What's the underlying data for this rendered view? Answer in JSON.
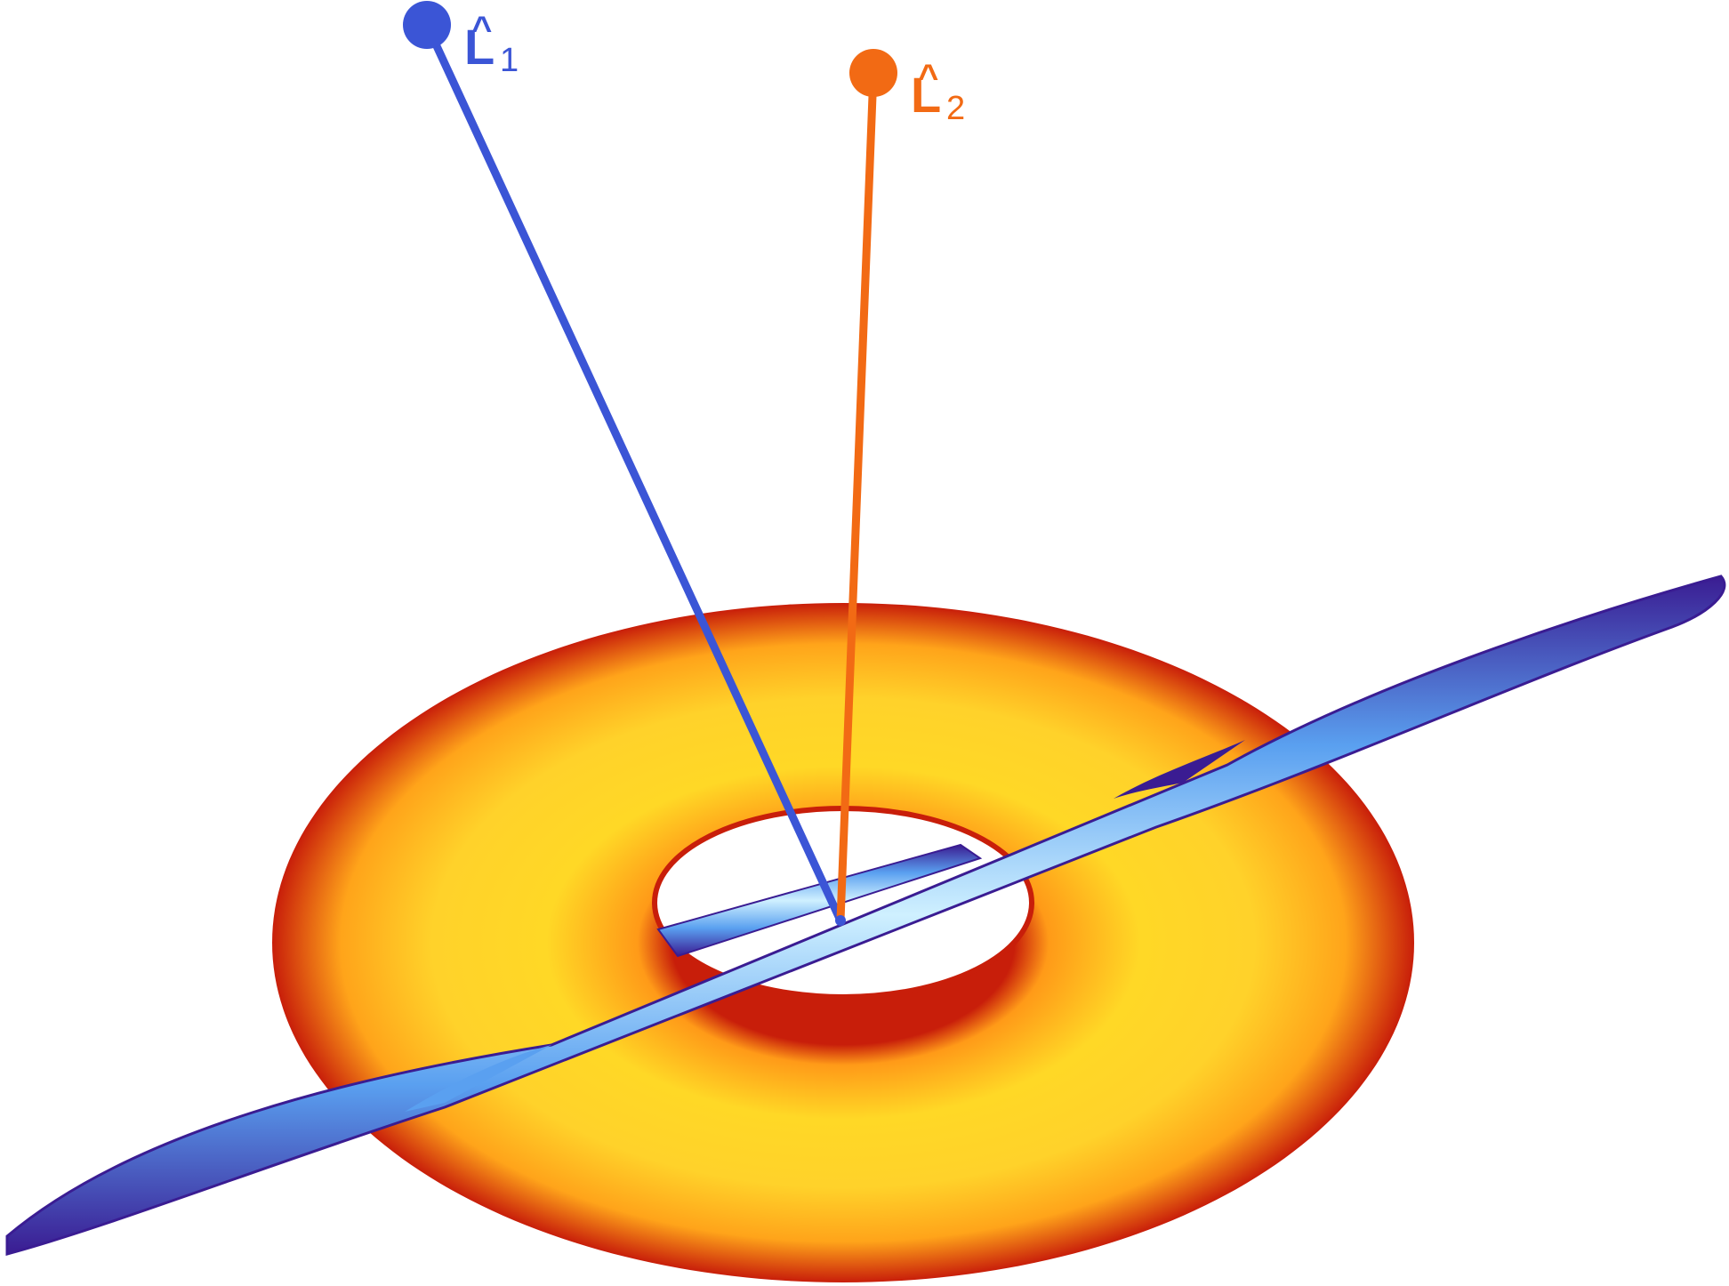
{
  "vectors": [
    {
      "id": "L1",
      "letter": "L",
      "hat": "^",
      "subscript": "1",
      "color": "#f26a14"
    },
    {
      "id": "L2",
      "letter": "L",
      "hat": "^",
      "subscript": "2",
      "color": "#3b55d6"
    }
  ],
  "surfaces": {
    "torus": {
      "inner_color": "#ffd826",
      "mid_color": "#ffa41a",
      "edge_color": "#c81e0a"
    },
    "thin_disk": {
      "inner_color": "#cff0ff",
      "mid_color": "#5aa0f0",
      "edge_color": "#3a1c92"
    }
  }
}
